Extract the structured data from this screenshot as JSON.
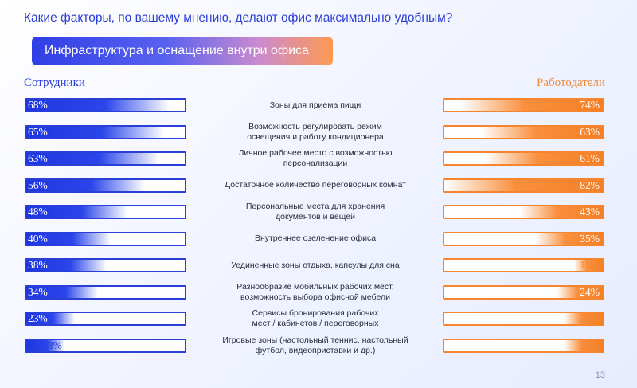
{
  "question": "Какие факторы, по вашему мнению, делают офис максимально удобным?",
  "section": "Инфраструктура и оснащение внутри офиса",
  "columns": {
    "left": "Сотрудники",
    "right": "Работодатели"
  },
  "page_number": "13",
  "colors": {
    "employees": "#2b3fd6",
    "employers": "#f5852e"
  },
  "chart_data": {
    "type": "bar",
    "categories": [
      "Зоны для приема пищи",
      "Возможность регулировать режим освещения и работу кондиционера",
      "Личное рабочее место с возможностью персонализации",
      "Достаточное количество переговорных комнат",
      "Персональные места для хранения документов и вещей",
      "Внутреннее озеленение офиса",
      "Уединенные зоны отдыха, капсулы для сна",
      "Разнообразие мобильных рабочих мест, возможность выбора офисной мебели",
      "Сервисы бронирования рабочих мест / кабинетов / переговорных",
      "Игровые зоны (настольный теннис, настольный футбол, видеоприставки и др.)"
    ],
    "category_lines": [
      [
        "Зоны для приема пищи"
      ],
      [
        "Возможность регулировать режим",
        "освещения и работу кондиционера"
      ],
      [
        "Личное рабочее место с возможностью",
        "персонализации"
      ],
      [
        "Достаточное количество переговорных комнат"
      ],
      [
        "Персональные места для хранения",
        "документов и вещей"
      ],
      [
        "Внутреннее озеленение офиса"
      ],
      [
        "Уединенные зоны отдыха, капсулы для сна"
      ],
      [
        "Разнообразие мобильных рабочих мест,",
        "возможность выбора офисной мебели"
      ],
      [
        "Сервисы бронирования рабочих",
        "мест / кабинетов / переговорных"
      ],
      [
        "Игровые зоны (настольный теннис, настольный",
        "футбол, видеоприставки и др.)"
      ]
    ],
    "series": [
      {
        "name": "Сотрудники",
        "values": [
          68,
          65,
          63,
          56,
          48,
          40,
          38,
          34,
          23,
          18
        ]
      },
      {
        "name": "Работодатели",
        "values": [
          74,
          63,
          61,
          82,
          43,
          35,
          15,
          24,
          20,
          20
        ]
      }
    ],
    "unit": "%",
    "ylim": [
      0,
      100
    ]
  }
}
